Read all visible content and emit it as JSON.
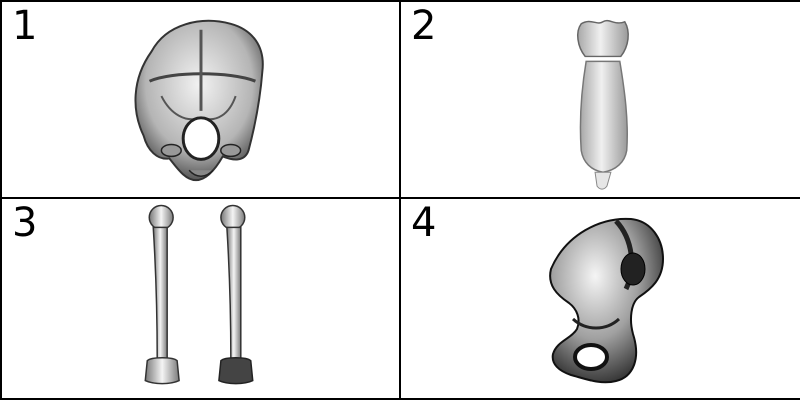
{
  "panels": [
    {
      "number": "1",
      "subject": "skull-bone-icon"
    },
    {
      "number": "2",
      "subject": "sternum-bone-icon"
    },
    {
      "number": "3",
      "subject": "humerus-bones-icon"
    },
    {
      "number": "4",
      "subject": "hip-bone-icon"
    }
  ],
  "colors": {
    "border": "#000000",
    "background": "#ffffff",
    "bone_light": "#e8e8e8",
    "bone_mid": "#a9a9a9",
    "bone_dark": "#2a2a2a"
  }
}
